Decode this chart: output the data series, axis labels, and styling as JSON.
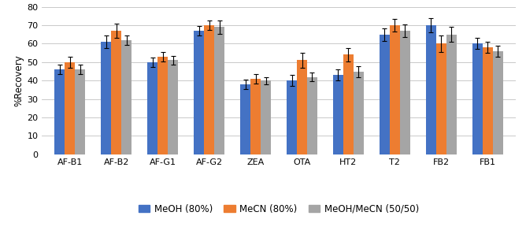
{
  "categories": [
    "AF-B1",
    "AF-B2",
    "AF-G1",
    "AF-G2",
    "ZEA",
    "OTA",
    "HT2",
    "T2",
    "FB2",
    "FB1"
  ],
  "series": {
    "MeOH (80%)": [
      46,
      61,
      50,
      67,
      38,
      40,
      43,
      65,
      70,
      60
    ],
    "MeCN (80%)": [
      50,
      67,
      53,
      70,
      41,
      51,
      54,
      70,
      60,
      58
    ],
    "MeOH/MeCN (50/50)": [
      46,
      62,
      51,
      69,
      40,
      42,
      45,
      67,
      65,
      56
    ]
  },
  "errors": {
    "MeOH (80%)": [
      2.5,
      3.5,
      2.5,
      2.5,
      2.5,
      3.0,
      3.0,
      3.5,
      4.0,
      3.0
    ],
    "MeCN (80%)": [
      3.0,
      4.0,
      2.5,
      2.5,
      2.5,
      4.0,
      3.5,
      3.5,
      4.5,
      3.0
    ],
    "MeOH/MeCN (50/50)": [
      2.5,
      2.5,
      2.5,
      3.5,
      2.0,
      2.5,
      3.0,
      3.5,
      4.0,
      3.0
    ]
  },
  "colors": {
    "MeOH (80%)": "#4472C4",
    "MeCN (80%)": "#ED7D31",
    "MeOH/MeCN (50/50)": "#A5A5A5"
  },
  "ylabel": "%Recovery",
  "ylim": [
    0,
    80
  ],
  "yticks": [
    0,
    10,
    20,
    30,
    40,
    50,
    60,
    70,
    80
  ],
  "bar_width": 0.22,
  "legend_labels": [
    "MeOH (80%)",
    "MeCN (80%)",
    "MeOH/MeCN (50/50)"
  ],
  "figsize": [
    6.68,
    2.88
  ],
  "dpi": 100
}
